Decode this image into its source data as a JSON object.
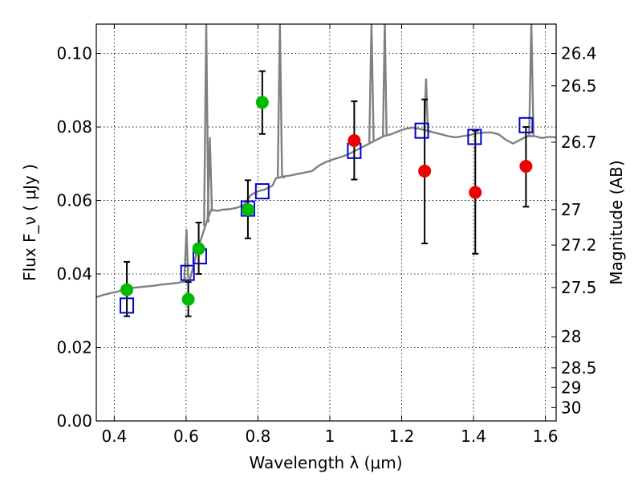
{
  "chart_data": {
    "type": "scatter",
    "xlabel": "Wavelength  λ (μm)",
    "ylabel": "Flux  F_ν  ( μJy )",
    "y2label": "Magnitude (AB)",
    "xlim": [
      0.35,
      1.63
    ],
    "ylim": [
      0.0,
      0.108
    ],
    "grid": true,
    "x_ticks": [
      0.4,
      0.6,
      0.8,
      1,
      1.2,
      1.4,
      1.6
    ],
    "y_ticks": [
      0.0,
      0.02,
      0.04,
      0.06,
      0.08,
      0.1
    ],
    "x_tick_labels": [
      "0.4",
      "0.6",
      "0.8",
      "1",
      "1.2",
      "1.4",
      "1.6"
    ],
    "y_tick_labels": [
      "0.00",
      "0.02",
      "0.04",
      "0.06",
      "0.08",
      "0.10"
    ],
    "mag_ticks": [
      {
        "label": "26.4",
        "value": 26.4
      },
      {
        "label": "26.5",
        "value": 26.5
      },
      {
        "label": "26.7",
        "value": 26.7
      },
      {
        "label": "27",
        "value": 27.0
      },
      {
        "label": "27.2",
        "value": 27.2
      },
      {
        "label": "27.5",
        "value": 27.5
      },
      {
        "label": "28",
        "value": 28.0
      },
      {
        "label": "28.5",
        "value": 28.5
      },
      {
        "label": "29",
        "value": 29.0
      },
      {
        "label": "30",
        "value": 30.0
      }
    ],
    "colors": {
      "spectrum": "#808080",
      "model": "#0000cc",
      "green": "#00bb00",
      "red": "#ee0000",
      "errorbar": "#000000"
    },
    "series": [
      {
        "type": "line",
        "color": "#808080",
        "points": [
          [
            0.35,
            0.0337
          ],
          [
            0.37,
            0.0343
          ],
          [
            0.39,
            0.0348
          ],
          [
            0.41,
            0.0352
          ],
          [
            0.42,
            0.0356
          ],
          [
            0.43,
            0.0358
          ],
          [
            0.45,
            0.0362
          ],
          [
            0.47,
            0.0364
          ],
          [
            0.49,
            0.0366
          ],
          [
            0.51,
            0.0368
          ],
          [
            0.53,
            0.0371
          ],
          [
            0.55,
            0.0373
          ],
          [
            0.57,
            0.0375
          ],
          [
            0.59,
            0.0378
          ],
          [
            0.61,
            0.0383
          ],
          [
            0.62,
            0.042
          ],
          [
            0.63,
            0.046
          ],
          [
            0.64,
            0.049
          ],
          [
            0.65,
            0.052
          ],
          [
            0.66,
            0.055
          ],
          [
            0.67,
            0.0575
          ],
          [
            0.68,
            0.0573
          ],
          [
            0.69,
            0.0572
          ],
          [
            0.7,
            0.0575
          ],
          [
            0.72,
            0.0576
          ],
          [
            0.74,
            0.058
          ],
          [
            0.76,
            0.0587
          ],
          [
            0.77,
            0.06
          ],
          [
            0.78,
            0.0615
          ],
          [
            0.8,
            0.0625
          ],
          [
            0.82,
            0.063
          ],
          [
            0.84,
            0.064
          ],
          [
            0.85,
            0.066
          ],
          [
            0.87,
            0.0665
          ],
          [
            0.89,
            0.0668
          ],
          [
            0.91,
            0.0672
          ],
          [
            0.93,
            0.0676
          ],
          [
            0.95,
            0.068
          ],
          [
            0.97,
            0.0695
          ],
          [
            0.99,
            0.0705
          ],
          [
            1.01,
            0.0712
          ],
          [
            1.03,
            0.0718
          ],
          [
            1.05,
            0.0725
          ],
          [
            1.07,
            0.0735
          ],
          [
            1.09,
            0.0745
          ],
          [
            1.11,
            0.0755
          ],
          [
            1.13,
            0.0765
          ],
          [
            1.15,
            0.0775
          ],
          [
            1.17,
            0.078
          ],
          [
            1.19,
            0.0788
          ],
          [
            1.21,
            0.0795
          ],
          [
            1.23,
            0.0798
          ],
          [
            1.25,
            0.0795
          ],
          [
            1.27,
            0.079
          ],
          [
            1.29,
            0.0785
          ],
          [
            1.31,
            0.078
          ],
          [
            1.33,
            0.0775
          ],
          [
            1.35,
            0.0772
          ],
          [
            1.37,
            0.0775
          ],
          [
            1.39,
            0.0778
          ],
          [
            1.41,
            0.0783
          ],
          [
            1.43,
            0.0785
          ],
          [
            1.45,
            0.0785
          ],
          [
            1.47,
            0.078
          ],
          [
            1.49,
            0.0765
          ],
          [
            1.51,
            0.0755
          ],
          [
            1.53,
            0.0765
          ],
          [
            1.55,
            0.0775
          ],
          [
            1.57,
            0.0775
          ],
          [
            1.59,
            0.077
          ],
          [
            1.61,
            0.0773
          ],
          [
            1.63,
            0.0772
          ]
        ]
      },
      {
        "type": "line",
        "color": "#808080",
        "points": [
          [
            0.595,
            0.0385
          ],
          [
            0.601,
            0.052
          ],
          [
            0.606,
            0.0388
          ]
        ]
      },
      {
        "type": "line",
        "color": "#808080",
        "points": [
          [
            0.65,
            0.053
          ],
          [
            0.656,
            0.1085
          ],
          [
            0.662,
            0.054
          ]
        ]
      },
      {
        "type": "line",
        "color": "#808080",
        "points": [
          [
            0.66,
            0.055
          ],
          [
            0.666,
            0.077
          ],
          [
            0.672,
            0.057
          ]
        ]
      },
      {
        "type": "line",
        "color": "#808080",
        "points": [
          [
            0.855,
            0.066
          ],
          [
            0.861,
            0.1085
          ],
          [
            0.867,
            0.067
          ],
          [
            0.873,
            0.066
          ]
        ]
      },
      {
        "type": "line",
        "color": "#808080",
        "points": [
          [
            1.11,
            0.0758
          ],
          [
            1.116,
            0.1085
          ],
          [
            1.122,
            0.076
          ]
        ]
      },
      {
        "type": "line",
        "color": "#808080",
        "points": [
          [
            1.148,
            0.0775
          ],
          [
            1.153,
            0.1085
          ],
          [
            1.158,
            0.0778
          ]
        ]
      },
      {
        "type": "line",
        "color": "#808080",
        "points": [
          [
            1.263,
            0.0793
          ],
          [
            1.268,
            0.093
          ],
          [
            1.273,
            0.079
          ]
        ]
      },
      {
        "type": "line",
        "color": "#808080",
        "points": [
          [
            1.555,
            0.0775
          ],
          [
            1.561,
            0.1085
          ],
          [
            1.567,
            0.0776
          ]
        ]
      },
      {
        "type": "squares",
        "color": "#0000cc",
        "points": [
          [
            0.435,
            0.0314
          ],
          [
            0.604,
            0.0403
          ],
          [
            0.638,
            0.0448
          ],
          [
            0.772,
            0.0578
          ],
          [
            0.812,
            0.0625
          ],
          [
            1.068,
            0.0735
          ],
          [
            1.256,
            0.079
          ],
          [
            1.403,
            0.0773
          ],
          [
            1.546,
            0.0805
          ]
        ]
      },
      {
        "type": "points",
        "color": "#00bb00",
        "points": [
          [
            0.435,
            0.0357
          ],
          [
            0.606,
            0.0331
          ],
          [
            0.635,
            0.0469
          ],
          [
            0.772,
            0.0575
          ],
          [
            0.812,
            0.0867
          ]
        ]
      },
      {
        "type": "points",
        "color": "#ee0000",
        "points": [
          [
            1.068,
            0.0763
          ],
          [
            1.264,
            0.068
          ],
          [
            1.405,
            0.0622
          ],
          [
            1.546,
            0.0693
          ]
        ]
      },
      {
        "type": "errorbars",
        "color": "#000000",
        "bars": [
          {
            "x": 0.435,
            "lo": 0.0285,
            "hi": 0.0433
          },
          {
            "x": 0.606,
            "lo": 0.0285,
            "hi": 0.0378
          },
          {
            "x": 0.635,
            "lo": 0.04,
            "hi": 0.054
          },
          {
            "x": 0.772,
            "lo": 0.0497,
            "hi": 0.0655
          },
          {
            "x": 0.812,
            "lo": 0.0781,
            "hi": 0.0952
          },
          {
            "x": 1.068,
            "lo": 0.0657,
            "hi": 0.087
          },
          {
            "x": 1.264,
            "lo": 0.0483,
            "hi": 0.0875
          },
          {
            "x": 1.405,
            "lo": 0.0455,
            "hi": 0.079
          },
          {
            "x": 1.546,
            "lo": 0.0583,
            "hi": 0.08
          }
        ]
      }
    ]
  }
}
